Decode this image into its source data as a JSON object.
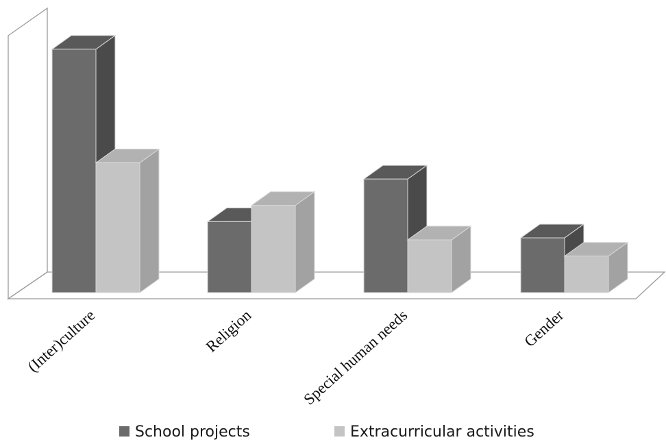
{
  "chart_data": {
    "type": "bar",
    "style": "3d-clustered-column",
    "title": "",
    "xlabel": "",
    "ylabel": "",
    "categories": [
      "(Inter)culture",
      "Religion",
      "Special human needs",
      "Gender"
    ],
    "series": [
      {
        "name": "School projects",
        "values": [
          12.0,
          3.5,
          5.6,
          2.7
        ],
        "color": "#6b6b6b",
        "top_color": "#595959",
        "side_color": "#4a4a4a"
      },
      {
        "name": "Extracurricular activities",
        "values": [
          6.4,
          4.3,
          2.6,
          1.8
        ],
        "color": "#c4c4c4",
        "top_color": "#b2b2b2",
        "side_color": "#a2a2a2"
      }
    ],
    "ylim": [
      0,
      14
    ],
    "grid": false,
    "y_axis_labels_shown": false,
    "legend_position": "bottom"
  }
}
